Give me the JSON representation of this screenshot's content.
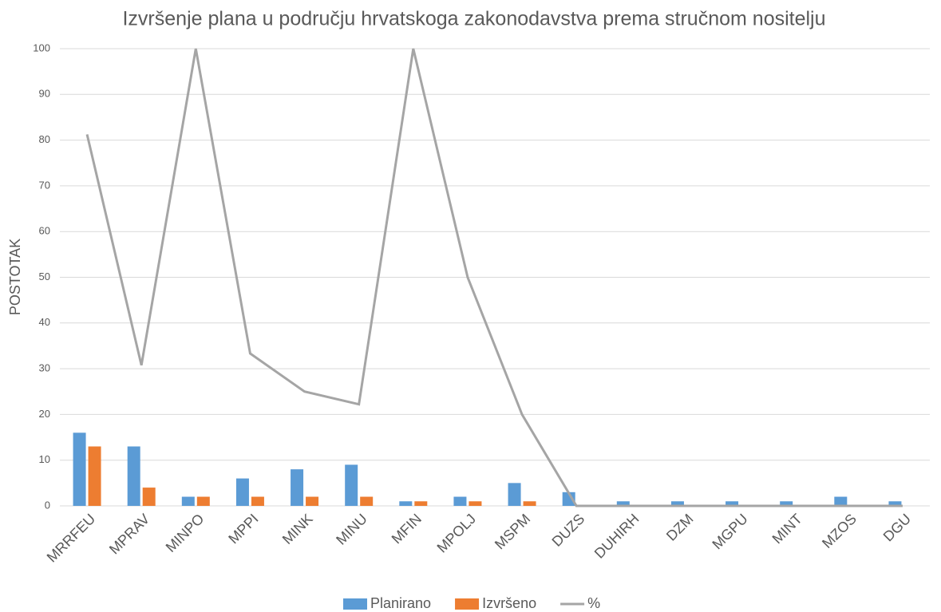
{
  "chart_data": {
    "type": "bar",
    "title": "Izvršenje plana u području hrvatskoga zakonodavstva prema stručnom nositelju",
    "y_label": "POSTOTAK",
    "categories": [
      "MRRFEU",
      "MPRAV",
      "MINPO",
      "MPPI",
      "MINK",
      "MINU",
      "MFIN",
      "MPOLJ",
      "MSPM",
      "DUZS",
      "DUHIRH",
      "DZM",
      "MGPU",
      "MINT",
      "MZOS",
      "DGU"
    ],
    "series": [
      {
        "name": "Planirano",
        "color": "#5b9bd5",
        "type": "bar",
        "values": [
          16,
          13,
          2,
          6,
          8,
          9,
          1,
          2,
          5,
          3,
          1,
          1,
          1,
          1,
          2,
          1
        ]
      },
      {
        "name": "Izvršeno",
        "color": "#ed7d31",
        "type": "bar",
        "values": [
          13,
          4,
          2,
          2,
          2,
          2,
          1,
          1,
          1,
          0,
          0,
          0,
          0,
          0,
          0,
          0
        ]
      },
      {
        "name": "%",
        "color": "#a5a5a5",
        "type": "line",
        "values": [
          81.25,
          30.77,
          100,
          33.33,
          25,
          22.22,
          100,
          50,
          20,
          0,
          0,
          0,
          0,
          0,
          0,
          0
        ]
      }
    ],
    "ylim": [
      0,
      100
    ],
    "yticks": [
      0,
      10,
      20,
      30,
      40,
      50,
      60,
      70,
      80,
      90,
      100
    ],
    "grid": true,
    "legend": "bottom"
  }
}
